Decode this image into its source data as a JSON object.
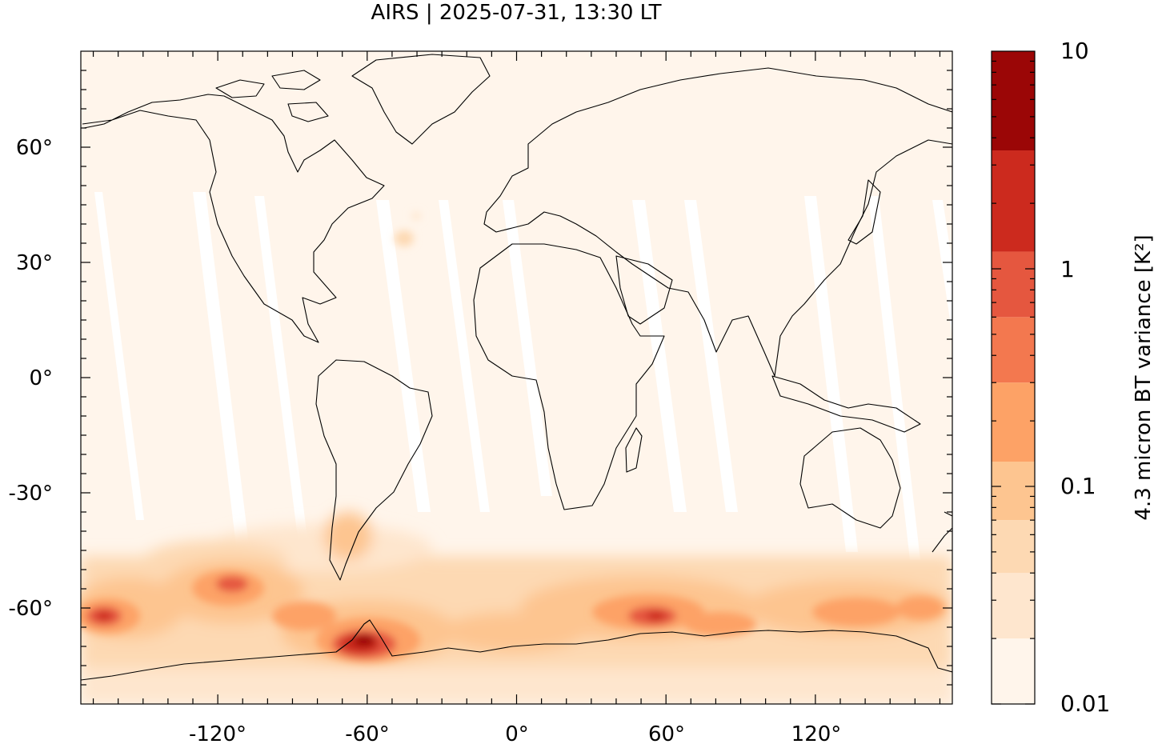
{
  "title": "AIRS | 2025-07-31, 13:30 LT",
  "map": {
    "projection": "equirectangular",
    "lon_range": [
      -175,
      175
    ],
    "lat_range": [
      -85,
      85
    ],
    "x_ticks": [
      {
        "value": -120,
        "label": "-120°"
      },
      {
        "value": -60,
        "label": "-60°"
      },
      {
        "value": 0,
        "label": "0°"
      },
      {
        "value": 60,
        "label": "60°"
      },
      {
        "value": 120,
        "label": "120°"
      }
    ],
    "y_ticks": [
      {
        "value": 60,
        "label": "60°"
      },
      {
        "value": 30,
        "label": "30°"
      },
      {
        "value": 0,
        "label": "0°"
      },
      {
        "value": -30,
        "label": "-30°"
      },
      {
        "value": -60,
        "label": "-60°"
      }
    ],
    "background_color": "#fff5eb",
    "coastline_color": "#000000"
  },
  "colorbar": {
    "label": "4.3 micron BT variance [K²]",
    "scale": "log",
    "range": [
      0.01,
      10
    ],
    "tick_values": [
      10,
      1,
      0.1,
      0.01
    ],
    "tick_labels": [
      "10",
      "1",
      "0.1",
      "0.01"
    ],
    "colors": [
      "#fff5eb",
      "#fee6ce",
      "#fdd9b3",
      "#fdc590",
      "#fda266",
      "#f3784f",
      "#e5573f",
      "#cc2a1e",
      "#9b0606"
    ],
    "boundaries": [
      0.01,
      0.02,
      0.04,
      0.07,
      0.13,
      0.3,
      0.6,
      1.2,
      3.5,
      10
    ]
  }
}
